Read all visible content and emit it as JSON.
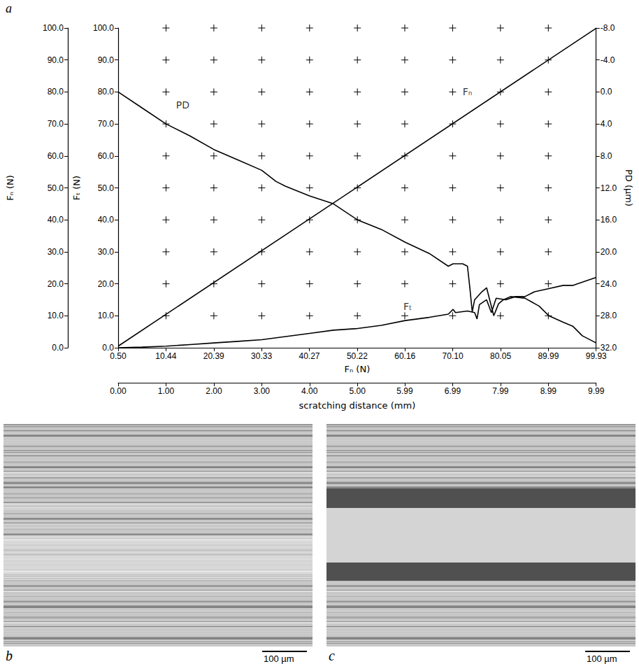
{
  "chart_data": {
    "type": "line",
    "panel_label": "a",
    "xlabel": "scratching distance (mm)",
    "xlim": [
      0,
      9.99
    ],
    "xticks": [
      {
        "value": 0,
        "label": "0.00"
      },
      {
        "value": 1,
        "label": "1.00"
      },
      {
        "value": 2,
        "label": "2.00"
      },
      {
        "value": 3,
        "label": "3.00"
      },
      {
        "value": 4,
        "label": "4.00"
      },
      {
        "value": 5,
        "label": "5.00"
      },
      5.99,
      6.99,
      7.99,
      8.99,
      9.99
    ],
    "x2label": "Fₙ (N)",
    "x2lim": [
      0.5,
      99.93
    ],
    "x2ticks": [
      {
        "value": 0.5,
        "label": "0.50"
      },
      10.44,
      20.39,
      30.33,
      40.27,
      50.22,
      60.16,
      {
        "value": 70.1,
        "label": "70.10"
      },
      80.05,
      89.99,
      99.93
    ],
    "ylabel": "Fₜ (N)",
    "ylim": [
      0,
      100
    ],
    "yticks": [
      {
        "value": 0,
        "label": "0.0"
      },
      {
        "value": 10,
        "label": "10.0"
      },
      {
        "value": 20,
        "label": "20.0"
      },
      {
        "value": 30,
        "label": "30.0"
      },
      {
        "value": 40,
        "label": "40.0"
      },
      {
        "value": 50,
        "label": "50.0"
      },
      {
        "value": 60,
        "label": "60.0"
      },
      {
        "value": 70,
        "label": "70.0"
      },
      {
        "value": 80,
        "label": "80.0"
      },
      {
        "value": 90,
        "label": "90.0"
      },
      {
        "value": 100,
        "label": "100.0"
      }
    ],
    "y_outer_label": "Fₙ (N)",
    "y_outer_lim": [
      0,
      100
    ],
    "y_outer_ticks": [
      {
        "value": 0,
        "label": "0.0"
      },
      {
        "value": 10,
        "label": "10.0"
      },
      {
        "value": 20,
        "label": "20.0"
      },
      {
        "value": 30,
        "label": "30.0"
      },
      {
        "value": 40,
        "label": "40.0"
      },
      {
        "value": 50,
        "label": "50.0"
      },
      {
        "value": 60,
        "label": "60.0"
      },
      {
        "value": 70,
        "label": "70.0"
      },
      {
        "value": 80,
        "label": "80.0"
      },
      {
        "value": 90,
        "label": "90.0"
      },
      {
        "value": 100,
        "label": "100.0"
      }
    ],
    "y2label": "PD (µm)",
    "y2lim": [
      32,
      -8
    ],
    "y2ticks": [
      {
        "value": -8,
        "label": "-8.0"
      },
      {
        "value": -4,
        "label": "-4.0"
      },
      {
        "value": 0,
        "label": "0.0"
      },
      {
        "value": 4,
        "label": "4.0"
      },
      {
        "value": 8,
        "label": "8.0"
      },
      {
        "value": 12,
        "label": "12.0"
      },
      {
        "value": 16,
        "label": "16.0"
      },
      {
        "value": 20,
        "label": "20.0"
      },
      {
        "value": 24,
        "label": "24.0"
      },
      {
        "value": 28,
        "label": "28.0"
      },
      {
        "value": 32,
        "label": "32.0"
      }
    ],
    "grid": true,
    "series": [
      {
        "name": "Fₙ",
        "color": "#000000",
        "axis": "y_outer",
        "label_at": [
          7.3,
          80
        ],
        "x": [
          0,
          9.99
        ],
        "values": [
          0.5,
          99.93
        ]
      },
      {
        "name": "Fₜ",
        "color": "#000000",
        "axis": "y",
        "label_at": [
          6.05,
          13
        ],
        "x": [
          0,
          0.5,
          1.0,
          1.5,
          2.0,
          2.5,
          3.0,
          3.5,
          4.0,
          4.5,
          5.0,
          5.5,
          6.0,
          6.5,
          6.9,
          7.0,
          7.05,
          7.3,
          7.45,
          7.5,
          7.55,
          7.7,
          7.8,
          7.9,
          8.1,
          8.3,
          8.5,
          8.7,
          9.0,
          9.3,
          9.5,
          9.7,
          9.99
        ],
        "values": [
          0,
          0.2,
          0.5,
          1,
          1.5,
          2,
          2.5,
          3.5,
          4.5,
          5.5,
          6,
          7,
          8.5,
          9.5,
          10.5,
          12,
          11,
          11.5,
          11,
          9,
          13.5,
          15,
          11,
          15.5,
          15,
          16,
          16,
          17.5,
          18.5,
          19.5,
          19.5,
          20.5,
          22
        ]
      },
      {
        "name": "PD",
        "color": "#000000",
        "axis": "y2",
        "label_at": [
          1.35,
          1.6
        ],
        "x": [
          0,
          0.5,
          1.0,
          1.5,
          2.0,
          2.5,
          3.0,
          3.3,
          3.5,
          4.0,
          4.5,
          5.0,
          5.5,
          6.0,
          6.5,
          6.9,
          7.0,
          7.2,
          7.3,
          7.35,
          7.4,
          7.45,
          7.6,
          7.7,
          7.85,
          7.95,
          8.05,
          8.2,
          8.5,
          8.8,
          9.0,
          9.3,
          9.5,
          9.7,
          9.99
        ],
        "values": [
          0,
          2,
          4,
          5.5,
          7.2,
          8.5,
          9.8,
          11.2,
          11.8,
          13,
          14,
          16,
          17.2,
          18.8,
          20.2,
          21.8,
          21.5,
          21.5,
          21.8,
          24.5,
          27.5,
          26,
          25,
          24.5,
          28,
          26.5,
          26,
          25.6,
          25.8,
          26.8,
          28,
          28.8,
          29.3,
          30.5,
          31.4
        ]
      }
    ]
  },
  "images": [
    {
      "label": "b",
      "scale_bar": "100 µm"
    },
    {
      "label": "c",
      "scale_bar": "100 µm"
    }
  ]
}
